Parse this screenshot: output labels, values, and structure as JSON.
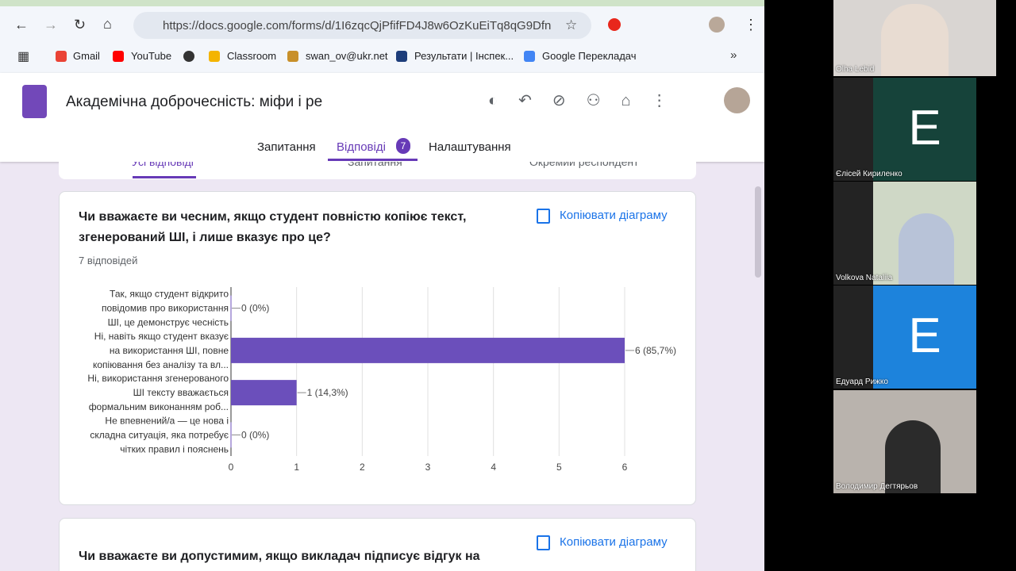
{
  "browser": {
    "url": "https://docs.google.com/forms/d/1I6zqcQjPfifFD4J8w6OzKuEiTq8qG9Dfnl...",
    "bookmarks": [
      "Gmail",
      "YouTube",
      "Classroom",
      "swan_ov@ukr.net",
      "Результати | Інспек...",
      "Google Перекладач"
    ]
  },
  "form": {
    "title": "Академічна доброчесність: міфи і ре",
    "tabs": [
      "Запитання",
      "Відповіді",
      "Налаштування"
    ],
    "response_count": "7",
    "subtabs": [
      "Усі відповіді",
      "Запитання",
      "Окремий респондент"
    ]
  },
  "question": {
    "title_lines": [
      "Чи вважаєте ви чесним, якщо студент повністю копіює текст,",
      "згенерований ШІ, і лише вказує про це?"
    ],
    "responses": "7 відповідей",
    "copy": "Копіювати діаграму"
  },
  "chart_data": {
    "type": "hbar",
    "categories": [
      [
        "Так, якщо студент відкрито",
        "повідомив про використання",
        "ШІ, це демонструє чесність"
      ],
      [
        "Ні, навіть якщо студент вказує",
        "на використання ШІ, повне",
        "копіювання без аналізу та вл..."
      ],
      [
        "Ні, використання згенерованого",
        "ШІ тексту вважається",
        "формальним виконанням роб..."
      ],
      [
        "Не впевнений/а — це нова і",
        "складна ситуація, яка потребує",
        "чітких правил і пояснень"
      ]
    ],
    "values": [
      0,
      6,
      1,
      0
    ],
    "value_labels": [
      "0 (0%)",
      "6 (85,7%)",
      "1 (14,3%)",
      "0 (0%)"
    ],
    "color": "#6b4fbb",
    "xlim": [
      0,
      6
    ],
    "xticks": [
      0,
      1,
      2,
      3,
      4,
      5,
      6
    ],
    "grid": true
  },
  "question2": {
    "title": "Чи вважаєте ви допустимим, якщо викладач підписує відгук на",
    "copy": "Копіювати діаграму"
  },
  "participants": [
    {
      "name": "Olha Lebid"
    },
    {
      "name": "Єлісей Кириленко",
      "initial": "E"
    },
    {
      "name": "Volkova Nataliia"
    },
    {
      "name": "Едуард Рижко",
      "initial": "E"
    },
    {
      "name": "Володимир Дегтярьов"
    }
  ]
}
